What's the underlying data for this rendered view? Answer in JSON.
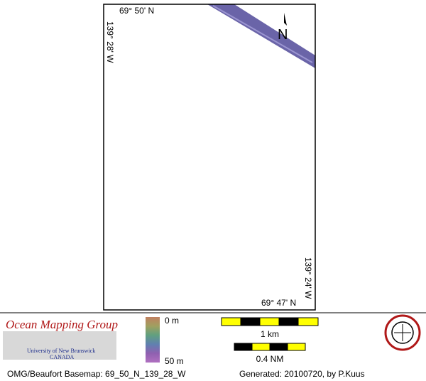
{
  "map": {
    "top_label": "69° 50' N",
    "left_label": "139° 28' W",
    "north_label": "N",
    "right_label": "139° 24' W",
    "bottom_label": "69° 47' N"
  },
  "footer": {
    "group": "Ocean Mapping Group",
    "university": "University of New Brunswick",
    "country": "CANADA",
    "depth_top": "0 m",
    "depth_bottom": "50 m",
    "scale_km": "1 km",
    "scale_nm": "0.4 NM",
    "basemap": "OMG/Beaufort Basemap: 69_50_N_139_28_W",
    "generated": "Generated: 20100720, by P.Kuus"
  }
}
